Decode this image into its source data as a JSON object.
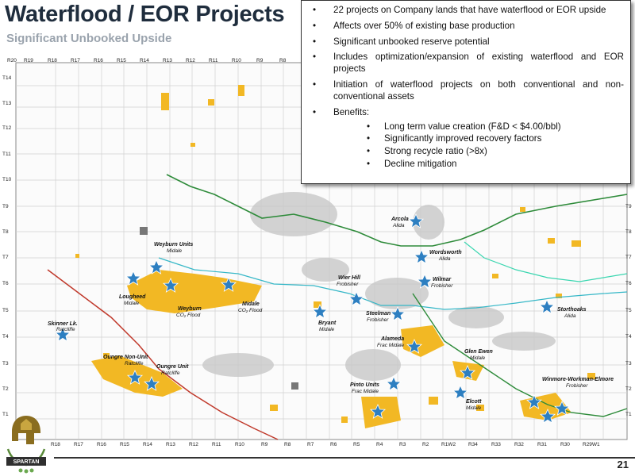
{
  "header": {
    "title": "Waterflood / EOR Projects",
    "subtitle": "Significant Unbooked Upside"
  },
  "bullets": {
    "items": [
      "22 projects on Company lands that have waterflood or EOR upside",
      "Affects over 50% of existing base production",
      "Significant unbooked reserve potential",
      "Includes optimization/expansion of existing waterflood and EOR projects",
      "Initiation of waterflood projects on both conventional and non-conventional assets",
      "Benefits:"
    ],
    "benefits": [
      "Long term value creation (F&D < $4.00/bbl)",
      "Significantly improved recovery factors",
      "Strong recycle ratio (>8x)",
      "Decline mitigation"
    ]
  },
  "map": {
    "ranges_top": [
      "R20",
      "R19",
      "R18",
      "R17",
      "R16",
      "R15",
      "R14",
      "R13",
      "R12",
      "R11",
      "R10",
      "R9",
      "R8",
      "R7",
      "R6",
      "R5",
      "R4",
      "R3",
      "R2",
      "R1W2",
      "R34",
      "R33",
      "R32",
      "R31",
      "R30",
      "R29W1"
    ],
    "ranges_bottom": [
      "R18",
      "R17",
      "R16",
      "R15",
      "R14",
      "R13",
      "R12",
      "R11",
      "R10",
      "R9",
      "R8",
      "R7",
      "R6",
      "R5",
      "R4",
      "R3",
      "R2",
      "R1W2",
      "R34",
      "R33",
      "R32",
      "R31",
      "R30",
      "R29W1"
    ],
    "townships_left": [
      "T14",
      "T13",
      "T12",
      "T11",
      "T10",
      "T9",
      "T8",
      "T7",
      "T6",
      "T5",
      "T4",
      "T3",
      "T2",
      "T1"
    ],
    "townships_right": [
      "T9",
      "T8",
      "T7",
      "T6",
      "T5",
      "T4",
      "T3",
      "T2",
      "T1"
    ],
    "projects": [
      {
        "name": "Arcola",
        "sub": "Alida"
      },
      {
        "name": "Weyburn Units",
        "sub": "Midale"
      },
      {
        "name": "Wordsworth",
        "sub": "Alida"
      },
      {
        "name": "Wier Hill",
        "sub": "Frobisher"
      },
      {
        "name": "Wilmar",
        "sub": "Frobisher"
      },
      {
        "name": "Lougheed",
        "sub": "Midale"
      },
      {
        "name": "Weyburn",
        "sub": "CO₂ Flood"
      },
      {
        "name": "Midale",
        "sub": "CO₂ Flood"
      },
      {
        "name": "Storthoaks",
        "sub": "Alida"
      },
      {
        "name": "Steelman",
        "sub": "Frobisher"
      },
      {
        "name": "Skinner Lk.",
        "sub": "Ratcliffe"
      },
      {
        "name": "Bryant",
        "sub": "Midale"
      },
      {
        "name": "Alameda",
        "sub": "Frac Midale"
      },
      {
        "name": "Oungre Non-Unit",
        "sub": "Ratcliffe"
      },
      {
        "name": "Glen Ewen",
        "sub": "Midale"
      },
      {
        "name": "Oungre Unit",
        "sub": "Ratcliffe"
      },
      {
        "name": "Winmore-Workman-Elmore",
        "sub": "Frobisher"
      },
      {
        "name": "Pinto Units",
        "sub": "Frac Midale"
      },
      {
        "name": "Elcott",
        "sub": "Midale"
      }
    ]
  },
  "footer": {
    "page_number": "21",
    "logo_text": "SPARTAN"
  },
  "colors": {
    "title": "#1f2d3d",
    "subtitle": "#9aa3ad",
    "land": "#f2b824",
    "star": "#2d7fc1",
    "river_green": "#2e8b3a",
    "river_red": "#c0392b",
    "river_cyan": "#35b7c7",
    "river_teal": "#3bd6b0"
  }
}
